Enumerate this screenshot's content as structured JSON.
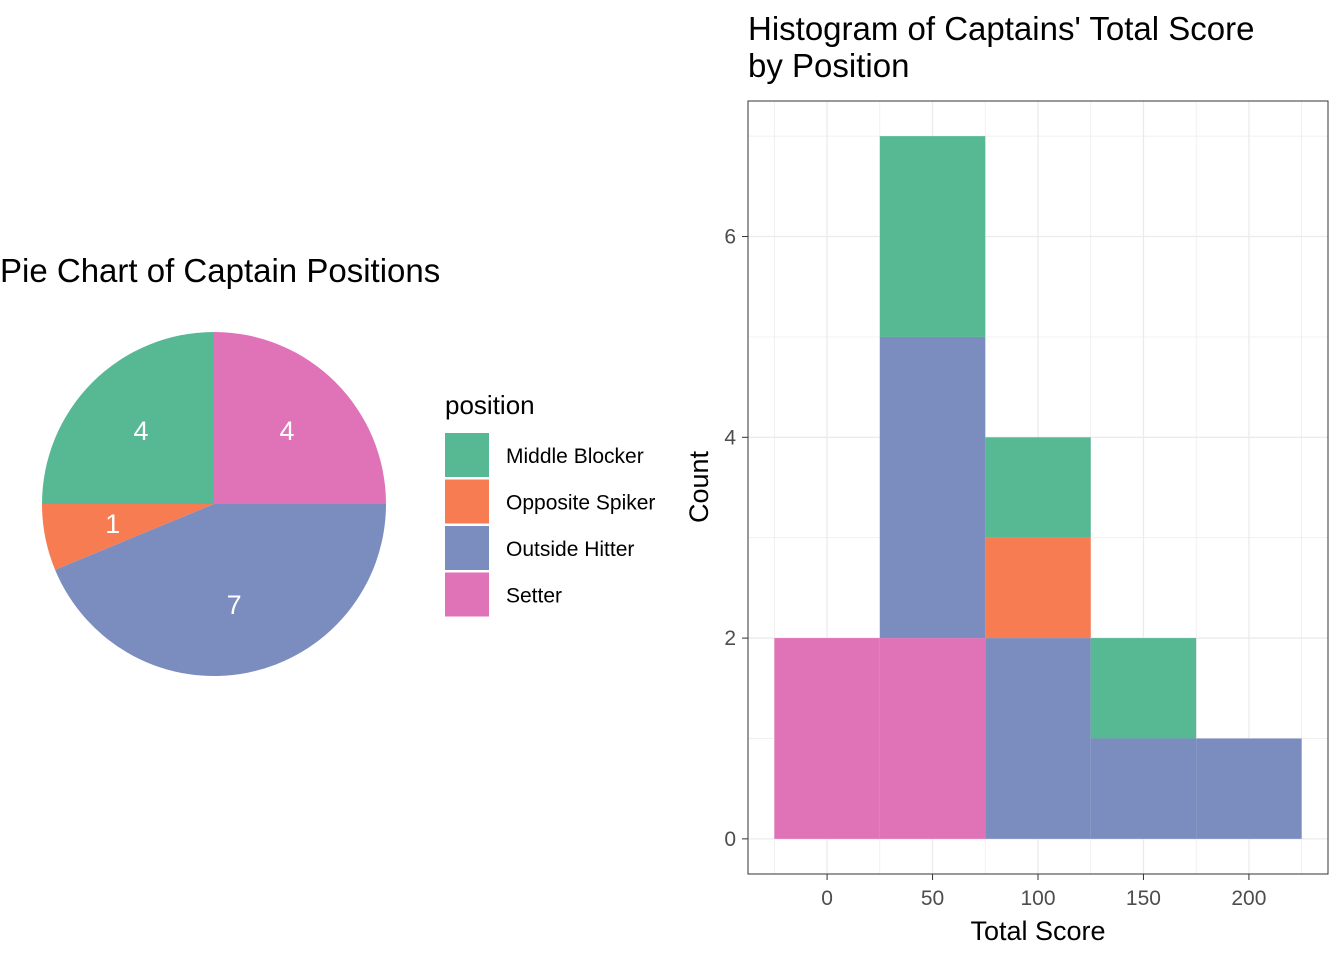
{
  "chart_data": [
    {
      "type": "pie",
      "title": "Pie Chart of Captain Positions",
      "legend_title": "position",
      "legend_position": "right",
      "slices": [
        {
          "label": "Middle Blocker",
          "value": 4,
          "color": "#57B894"
        },
        {
          "label": "Opposite Spiker",
          "value": 1,
          "color": "#F77C52"
        },
        {
          "label": "Outside Hitter",
          "value": 7,
          "color": "#7B8CBF"
        },
        {
          "label": "Setter",
          "value": 4,
          "color": "#E072B8"
        }
      ]
    },
    {
      "type": "bar",
      "subtype": "stacked-histogram",
      "title_lines": [
        "Histogram of Captains' Total Score",
        "by Position"
      ],
      "xlabel": "Total Score",
      "ylabel": "Count",
      "xlim": [
        -37.5,
        237.5
      ],
      "ylim": [
        -0.35,
        7.35
      ],
      "x_ticks": [
        0,
        50,
        100,
        150,
        200
      ],
      "y_ticks": [
        0,
        2,
        4,
        6
      ],
      "grid": true,
      "bin_width": 50,
      "bins": [
        {
          "x0": -25,
          "x1": 25,
          "counts": {
            "Middle Blocker": 0,
            "Opposite Spiker": 0,
            "Outside Hitter": 0,
            "Setter": 2
          }
        },
        {
          "x0": 25,
          "x1": 75,
          "counts": {
            "Middle Blocker": 2,
            "Opposite Spiker": 0,
            "Outside Hitter": 3,
            "Setter": 2
          }
        },
        {
          "x0": 75,
          "x1": 125,
          "counts": {
            "Middle Blocker": 1,
            "Opposite Spiker": 1,
            "Outside Hitter": 2,
            "Setter": 0
          }
        },
        {
          "x0": 125,
          "x1": 175,
          "counts": {
            "Middle Blocker": 1,
            "Opposite Spiker": 0,
            "Outside Hitter": 1,
            "Setter": 0
          }
        },
        {
          "x0": 175,
          "x1": 225,
          "counts": {
            "Middle Blocker": 0,
            "Opposite Spiker": 0,
            "Outside Hitter": 1,
            "Setter": 0
          }
        }
      ],
      "stack_order": [
        "Setter",
        "Outside Hitter",
        "Opposite Spiker",
        "Middle Blocker"
      ]
    }
  ]
}
